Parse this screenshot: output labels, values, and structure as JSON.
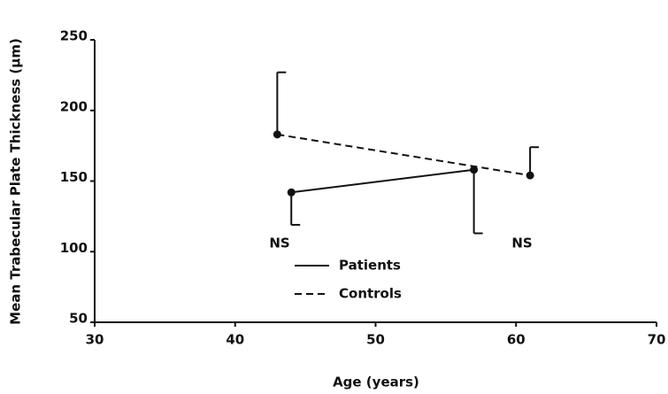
{
  "chart_data": {
    "type": "line",
    "x_label": "Age (years)",
    "y_label": "Mean Trabecular Plate Thickness (µm)",
    "xlim": [
      30,
      70
    ],
    "xticks": [
      30,
      40,
      50,
      60,
      70
    ],
    "ylim": [
      50,
      250
    ],
    "yticks": [
      50,
      100,
      150,
      200,
      250
    ],
    "series": [
      {
        "name": "Patients",
        "color": "#111111",
        "dashed": false,
        "error_direction": "down",
        "x": [
          44,
          57
        ],
        "values": [
          142,
          158
        ],
        "errors": [
          23,
          45
        ]
      },
      {
        "name": "Controls",
        "color": "#111111",
        "dashed": true,
        "error_direction": "up",
        "x": [
          43,
          61
        ],
        "values": [
          183,
          154
        ],
        "errors": [
          44,
          20
        ]
      }
    ],
    "annotations": [
      "NS",
      "NS"
    ]
  }
}
